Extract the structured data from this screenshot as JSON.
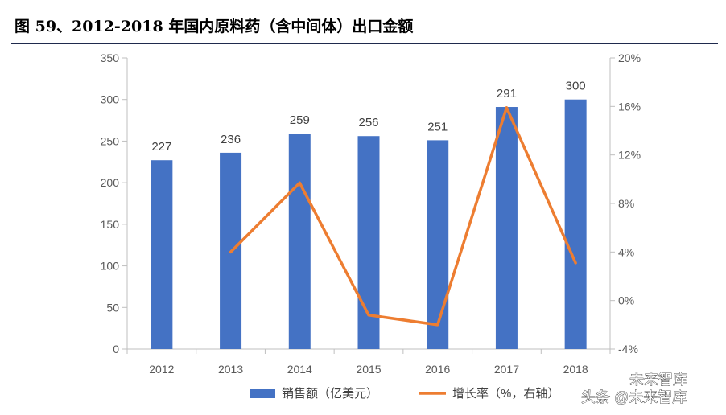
{
  "page": {
    "title": "图 59、2012-2018 年国内原料药（含中间体）出口金额"
  },
  "chart_data": {
    "type": "bar",
    "categories": [
      "2012",
      "2013",
      "2014",
      "2015",
      "2016",
      "2017",
      "2018"
    ],
    "series": [
      {
        "name": "销售额（亿美元）",
        "type": "bar",
        "axis": "left",
        "color": "#4472c4",
        "values": [
          227,
          236,
          259,
          256,
          251,
          291,
          300
        ],
        "data_labels": [
          "227",
          "236",
          "259",
          "256",
          "251",
          "291",
          "300"
        ]
      },
      {
        "name": "增长率（%，右轴）",
        "type": "line",
        "axis": "right",
        "color": "#ed7d31",
        "values": [
          null,
          4.0,
          9.7,
          -1.2,
          -2.0,
          15.9,
          3.1
        ]
      }
    ],
    "y_left": {
      "min": 0,
      "max": 350,
      "ticks": [
        "0",
        "50",
        "100",
        "150",
        "200",
        "250",
        "300",
        "350"
      ]
    },
    "y_right": {
      "min": -4,
      "max": 20,
      "ticks": [
        "-4%",
        "0%",
        "4%",
        "8%",
        "12%",
        "16%",
        "20%"
      ]
    },
    "legend_position": "bottom",
    "grid": false
  },
  "watermark": {
    "line1": "未来智库",
    "line2": "头条 @未来智库"
  }
}
